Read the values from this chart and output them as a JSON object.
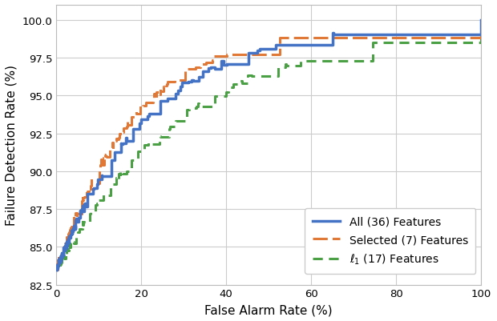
{
  "xlabel": "False Alarm Rate (%)",
  "ylabel": "Failure Detection Rate (%)",
  "xlim": [
    0,
    100
  ],
  "ylim": [
    82.5,
    101.0
  ],
  "yticks": [
    82.5,
    85.0,
    87.5,
    90.0,
    92.5,
    95.0,
    97.5,
    100.0
  ],
  "xticks": [
    0,
    20,
    40,
    60,
    80,
    100
  ],
  "colors": {
    "all": "#4472c4",
    "selected": "#e07838",
    "l1": "#4ba046"
  },
  "legend_labels": [
    "All (36) Features",
    "Selected (7) Features",
    "$\\ell_1$ (17) Features"
  ],
  "background_color": "#ffffff",
  "grid_color": "#cccccc"
}
